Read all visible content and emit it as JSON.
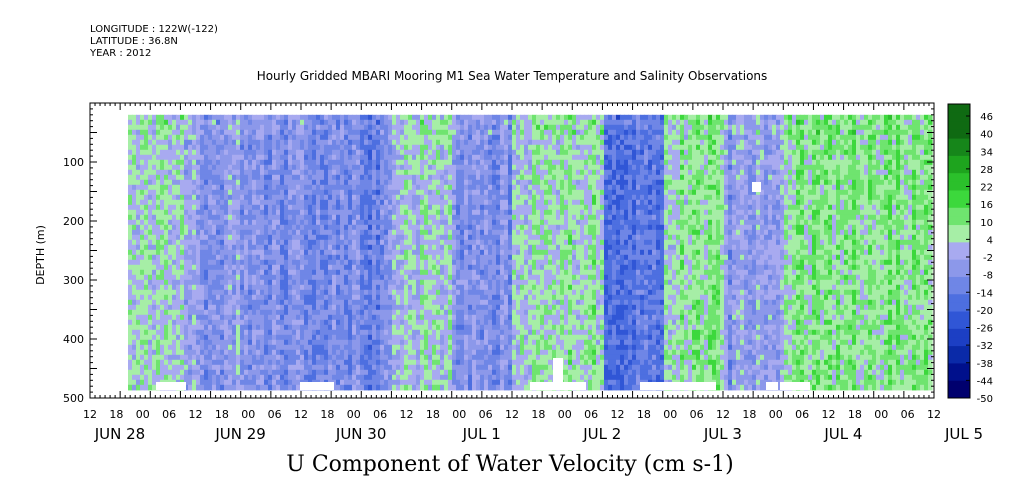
{
  "header": {
    "longitude": "LONGITUDE : 122W(-122)",
    "latitude": "LATITUDE : 36.8N",
    "year": "YEAR : 2012"
  },
  "chart_data": {
    "type": "heatmap",
    "title": "Hourly Gridded MBARI Mooring M1 Sea Water Temperature and Salinity Observations",
    "xlabel": "U Component of Water Velocity (cm s-1)",
    "ylabel": "DEPTH (m)",
    "ylim": [
      500,
      0
    ],
    "y_ticks": [
      100,
      200,
      300,
      400,
      500
    ],
    "x_hour_ticks": [
      "12",
      "18",
      "00",
      "06",
      "12",
      "18",
      "00",
      "06",
      "12",
      "18",
      "00",
      "06",
      "12",
      "18",
      "00",
      "06",
      "12",
      "18",
      "00",
      "06",
      "12",
      "18",
      "00",
      "06",
      "12",
      "18",
      "00",
      "06",
      "12",
      "18",
      "00",
      "06",
      "12"
    ],
    "x_day_labels": [
      "JUN 28",
      "JUN 29",
      "JUN 30",
      "JUL 1",
      "JUL 2",
      "JUL 3",
      "JUL 4",
      "JUL 5"
    ],
    "colorbar_ticks": [
      46,
      40,
      34,
      28,
      22,
      16,
      10,
      4,
      -2,
      -8,
      -14,
      -20,
      -26,
      -32,
      -38,
      -44,
      -50
    ],
    "colors": {
      "strong_negative": "#000078",
      "moderate_negative": "#2a4fd4",
      "weak_negative": "#8c8ce6",
      "weak_positive": "#8ceb8c",
      "moderate_positive": "#3cd23c",
      "strong_positive": "#0a4a0a"
    },
    "time_range": [
      "JUN 28 12",
      "JUL 5 12"
    ],
    "depth_range_m": [
      20,
      485
    ],
    "dominant_values": {
      "description_bins": [
        "negative (-2 to -14)",
        "positive (4 to 16)"
      ],
      "segments": [
        {
          "start": "JUN 28 12",
          "end": "JUN 29 06",
          "sign": "positive",
          "value": 6
        },
        {
          "start": "JUN 29 06",
          "end": "JUN 29 18",
          "sign": "negative",
          "value": -4
        },
        {
          "start": "JUN 29 18",
          "end": "JUN 30 12",
          "sign": "negative",
          "value": -8
        },
        {
          "start": "JUN 30 12",
          "end": "JUL 1 00",
          "sign": "negative",
          "value": -10
        },
        {
          "start": "JUL 1 00",
          "end": "JUL 1 12",
          "sign": "positive",
          "value": 4
        },
        {
          "start": "JUL 1 12",
          "end": "JUL 2 00",
          "sign": "negative",
          "value": -8
        },
        {
          "start": "JUL 2 00",
          "end": "JUL 2 18",
          "sign": "positive",
          "value": 6
        },
        {
          "start": "JUL 2 18",
          "end": "JUL 3 06",
          "sign": "negative",
          "value": -14
        },
        {
          "start": "JUL 3 06",
          "end": "JUL 3 18",
          "sign": "positive",
          "value": 8
        },
        {
          "start": "JUL 3 18",
          "end": "JUL 4 06",
          "sign": "negative",
          "value": -4
        },
        {
          "start": "JUL 4 06",
          "end": "JUL 5 12",
          "sign": "positive",
          "value": 10
        }
      ]
    }
  }
}
